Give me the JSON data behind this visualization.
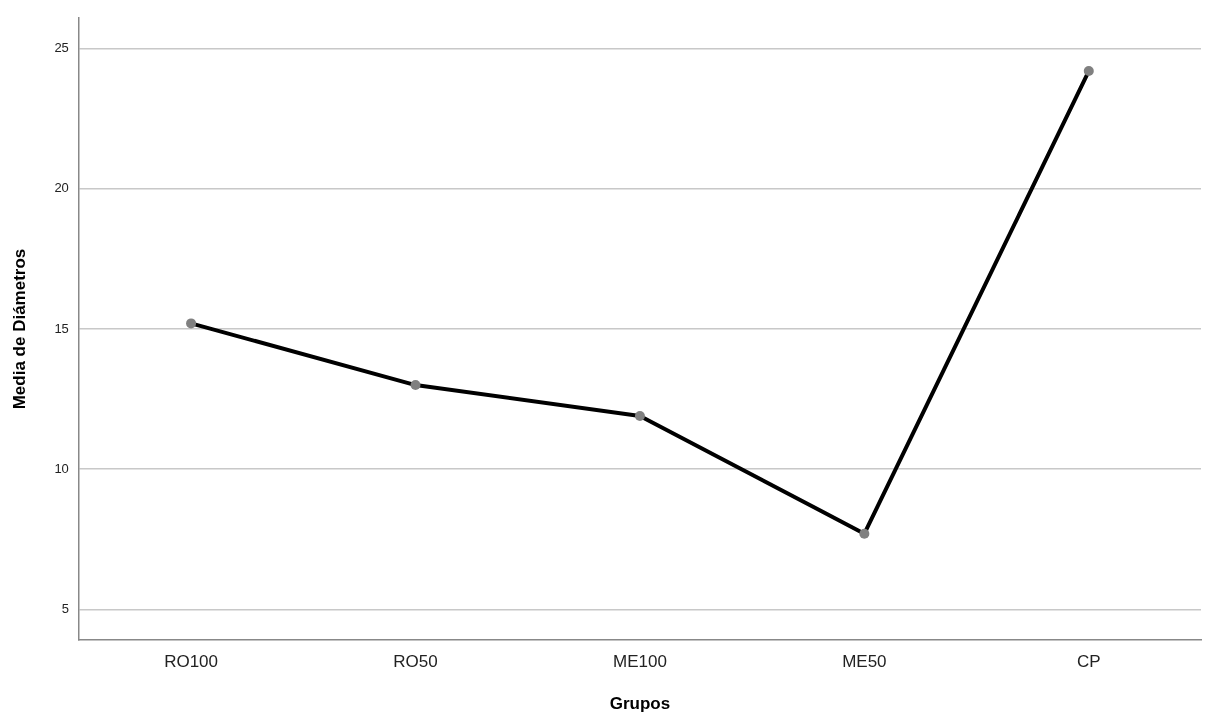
{
  "chart_data": {
    "type": "line",
    "xlabel": "Grupos",
    "ylabel": "Media de Diámetros",
    "categories": [
      "RO100",
      "RO50",
      "ME100",
      "ME50",
      "CP"
    ],
    "series": [
      {
        "color": "#000000",
        "values": [
          15.2,
          13.0,
          11.9,
          7.7,
          24.2
        ]
      }
    ],
    "ylim": [
      3.9,
      26.1
    ],
    "yticks": [
      5,
      10,
      15,
      20,
      25
    ],
    "grid": "y",
    "legend": false,
    "marker": "circle",
    "line_style": "solid"
  }
}
